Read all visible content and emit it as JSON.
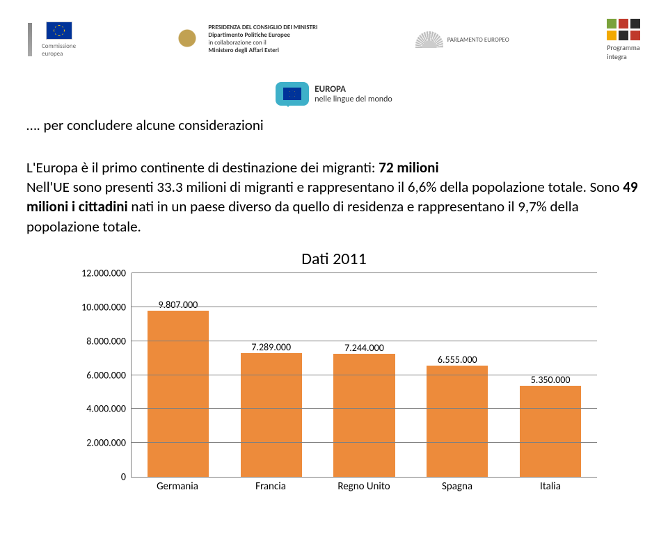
{
  "header": {
    "ec_label": "Commissione\neuropea",
    "ministry_line1": "PRESIDENZA DEL CONSIGLIO DEI MINISTRI",
    "ministry_line2": "Dipartimento Politiche Europee",
    "ministry_line3": "in collaborazione con il",
    "ministry_line4": "Ministero degli Affari Esteri",
    "parliament_label": "PARLAMENTO EUROPEO",
    "integra_label": "Programma\nintegra",
    "europa_title": "EUROPA",
    "europa_sub": "nelle lingue del mondo"
  },
  "body": {
    "p1_lead": "…. per concludere alcune considerazioni",
    "p2a": "L'Europa è il primo continente di destinazione dei migranti: ",
    "p2b_bold": "72 milioni",
    "p2c": "\nNell'UE sono presenti 33.3 milioni di migranti e rappresentano il 6,6% della popolazione totale. Sono ",
    "p2d_bold": "49 milioni i cittadini",
    "p2e": " nati in un paese diverso da quello di residenza e rappresentano il 9,7% della popolazione totale."
  },
  "chart": {
    "type": "bar",
    "title": "Dati 2011",
    "categories": [
      "Germania",
      "Francia",
      "Regno Unito",
      "Spagna",
      "Italia"
    ],
    "values": [
      9807000,
      7289000,
      7244000,
      6555000,
      5350000
    ],
    "value_labels": [
      "9.807.000",
      "7.289.000",
      "7.244.000",
      "6.555.000",
      "5.350.000"
    ],
    "bar_color": "#ed8b3b",
    "ylim": [
      0,
      12000000
    ],
    "ytick_step": 2000000,
    "ytick_labels": [
      "0",
      "2.000.000",
      "4.000.000",
      "6.000.000",
      "8.000.000",
      "10.000.000",
      "12.000.000"
    ],
    "background_color": "#ffffff",
    "grid_color": "#808080",
    "title_fontsize": 24,
    "label_fontsize": 14,
    "axis_fontsize": 15,
    "bar_width": 0.66
  }
}
